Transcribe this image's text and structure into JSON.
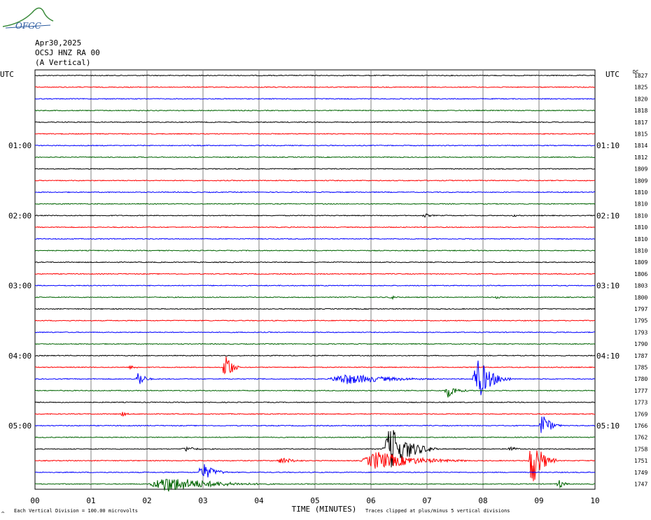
{
  "header": {
    "logo_text": "OFGC",
    "date": "Apr30,2025",
    "station": "OCSJ HNZ RA 00",
    "component": "(A Vertical)"
  },
  "chart_data": {
    "type": "line",
    "left_axis_label": "UTC",
    "right_axis_label": "UTC",
    "dc_label": "DC",
    "xlabel": "TIME (MINUTES)",
    "xlim": [
      0,
      10
    ],
    "x_tick_labels": [
      "00",
      "01",
      "02",
      "03",
      "04",
      "05",
      "06",
      "07",
      "08",
      "09",
      "10"
    ],
    "trace_colors": [
      "#000000",
      "#ff0000",
      "#0000ff",
      "#006400"
    ],
    "left_time_labels": [
      {
        "trace": 6,
        "text": "01:00"
      },
      {
        "trace": 12,
        "text": "02:00"
      },
      {
        "trace": 18,
        "text": "03:00"
      },
      {
        "trace": 24,
        "text": "04:00"
      },
      {
        "trace": 30,
        "text": "05:00"
      }
    ],
    "right_time_labels": [
      {
        "trace": 6,
        "text": "01:10"
      },
      {
        "trace": 12,
        "text": "02:10"
      },
      {
        "trace": 18,
        "text": "03:10"
      },
      {
        "trace": 24,
        "text": "04:10"
      },
      {
        "trace": 30,
        "text": "05:10"
      }
    ],
    "dc_values": [
      "1827",
      "1825",
      "1820",
      "1818",
      "1817",
      "1815",
      "1814",
      "1812",
      "1809",
      "1809",
      "1810",
      "1810",
      "1810",
      "1810",
      "1810",
      "1810",
      "1809",
      "1806",
      "1803",
      "1800",
      "1797",
      "1795",
      "1793",
      "1790",
      "1787",
      "1785",
      "1780",
      "1777",
      "1773",
      "1769",
      "1766",
      "1762",
      "1758",
      "1751",
      "1749",
      "1747"
    ],
    "events": [
      {
        "trace": 12,
        "start": 6.9,
        "end": 7.3,
        "amp": 3
      },
      {
        "trace": 12,
        "start": 8.5,
        "end": 8.8,
        "amp": 2
      },
      {
        "trace": 19,
        "start": 6.3,
        "end": 6.7,
        "amp": 3
      },
      {
        "trace": 19,
        "start": 8.2,
        "end": 8.5,
        "amp": 2
      },
      {
        "trace": 25,
        "start": 1.65,
        "end": 2.05,
        "amp": 3
      },
      {
        "trace": 25,
        "start": 3.35,
        "end": 3.65,
        "amp": 30
      },
      {
        "trace": 26,
        "start": 1.8,
        "end": 2.1,
        "amp": 14
      },
      {
        "trace": 26,
        "start": 5.2,
        "end": 7.5,
        "amp": 8
      },
      {
        "trace": 26,
        "start": 7.8,
        "end": 8.5,
        "amp": 32
      },
      {
        "trace": 27,
        "start": 7.3,
        "end": 7.8,
        "amp": 10
      },
      {
        "trace": 29,
        "start": 1.5,
        "end": 1.8,
        "amp": 4
      },
      {
        "trace": 30,
        "start": 9.0,
        "end": 9.4,
        "amp": 20
      },
      {
        "trace": 32,
        "start": 2.6,
        "end": 3.2,
        "amp": 4
      },
      {
        "trace": 32,
        "start": 6.2,
        "end": 7.2,
        "amp": 34
      },
      {
        "trace": 32,
        "start": 8.4,
        "end": 8.8,
        "amp": 5
      },
      {
        "trace": 33,
        "start": 4.3,
        "end": 5.0,
        "amp": 5
      },
      {
        "trace": 33,
        "start": 5.8,
        "end": 7.8,
        "amp": 14
      },
      {
        "trace": 33,
        "start": 8.8,
        "end": 9.3,
        "amp": 40
      },
      {
        "trace": 34,
        "start": 2.9,
        "end": 3.5,
        "amp": 14
      },
      {
        "trace": 35,
        "start": 2.0,
        "end": 4.3,
        "amp": 12
      },
      {
        "trace": 35,
        "start": 9.3,
        "end": 9.6,
        "amp": 8
      }
    ],
    "footer_left_mark": "ᴖ",
    "footer_left": "Each Vertical Division =  100.00 microvolts",
    "footer_right": "Traces clipped at plus/minus 5 vertical divisions"
  }
}
